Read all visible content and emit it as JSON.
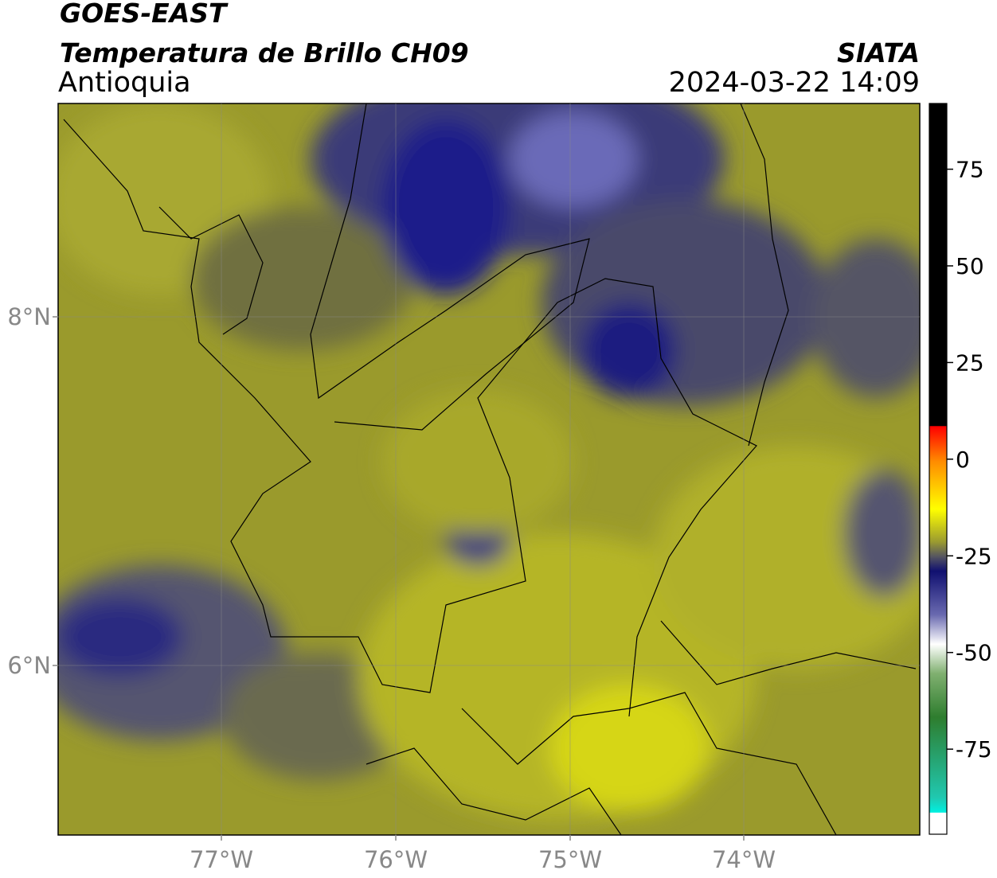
{
  "header": {
    "title": "GOES-EAST",
    "subtitle": "Temperatura de Brillo CH09",
    "region": "Antioquia",
    "source": "SIATA",
    "datetime": "2024-03-22 14:09"
  },
  "map": {
    "lat_labels": [
      "8°N",
      "6°N"
    ],
    "lon_labels": [
      "77°W",
      "76°W",
      "75°W",
      "74°W"
    ]
  },
  "colorbar": {
    "lim": [
      -97,
      92
    ],
    "ticks": [
      75,
      50,
      25,
      0,
      -25,
      -50,
      -75
    ]
  }
}
